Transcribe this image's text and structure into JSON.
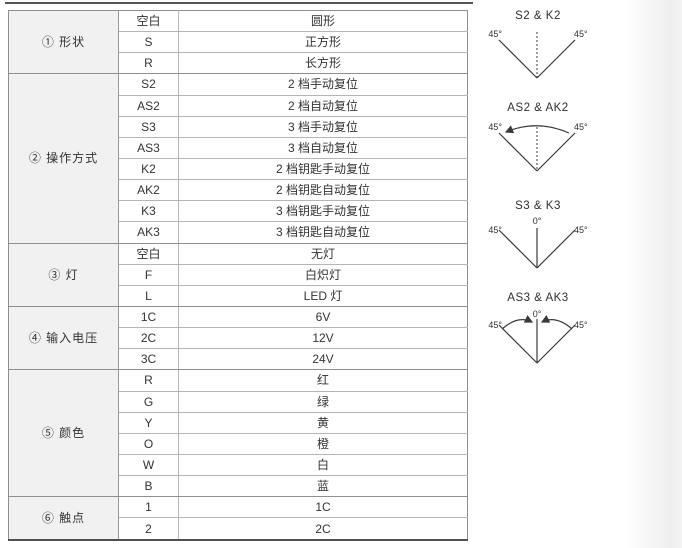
{
  "colors": {
    "category_bg": "#f1f1f1",
    "row_line": "#b5b5b5",
    "section_line": "#8f8f8f",
    "bottom_rule": "#4f4f4f",
    "text": "#333333",
    "diagram_line": "#3a3a3a"
  },
  "table": {
    "sections": [
      {
        "label": "① 形状",
        "rows": [
          {
            "code": "空白",
            "desc": "圆形"
          },
          {
            "code": "S",
            "desc": "正方形"
          },
          {
            "code": "R",
            "desc": "长方形"
          }
        ]
      },
      {
        "label": "② 操作方式",
        "rows": [
          {
            "code": "S2",
            "desc": "2 档手动复位"
          },
          {
            "code": "AS2",
            "desc": "2 档自动复位"
          },
          {
            "code": "S3",
            "desc": "3 档手动复位"
          },
          {
            "code": "AS3",
            "desc": "3 档自动复位"
          },
          {
            "code": "K2",
            "desc": "2 档钥匙手动复位"
          },
          {
            "code": "AK2",
            "desc": "2 档钥匙自动复位"
          },
          {
            "code": "K3",
            "desc": "3 档钥匙手动复位"
          },
          {
            "code": "AK3",
            "desc": "3 档钥匙自动复位"
          }
        ]
      },
      {
        "label": "③ 灯",
        "rows": [
          {
            "code": "空白",
            "desc": "无灯"
          },
          {
            "code": "F",
            "desc": "白炽灯"
          },
          {
            "code": "L",
            "desc": "LED 灯"
          }
        ]
      },
      {
        "label": "④ 输入电压",
        "rows": [
          {
            "code": "1C",
            "desc": "6V"
          },
          {
            "code": "2C",
            "desc": "12V"
          },
          {
            "code": "3C",
            "desc": "24V"
          }
        ]
      },
      {
        "label": "⑤ 颜色",
        "rows": [
          {
            "code": "R",
            "desc": "红"
          },
          {
            "code": "G",
            "desc": "绿"
          },
          {
            "code": "Y",
            "desc": "黄"
          },
          {
            "code": "O",
            "desc": "橙"
          },
          {
            "code": "W",
            "desc": "白"
          },
          {
            "code": "B",
            "desc": "蓝"
          }
        ]
      },
      {
        "label": "⑥ 触点",
        "rows": [
          {
            "code": "1",
            "desc": "1C"
          },
          {
            "code": "2",
            "desc": "2C"
          }
        ]
      }
    ]
  },
  "diagrams": [
    {
      "title": "S2 & K2",
      "left_angle": "45°",
      "right_angle": "45°"
    },
    {
      "title": "AS2 & AK2",
      "left_angle": "45°",
      "right_angle": "45°"
    },
    {
      "title": "S3 & K3",
      "left_angle": "45°",
      "right_angle": "45°",
      "center_angle": "0°"
    },
    {
      "title": "AS3 & AK3",
      "left_angle": "45°",
      "right_angle": "45°",
      "center_angle": "0°"
    }
  ]
}
